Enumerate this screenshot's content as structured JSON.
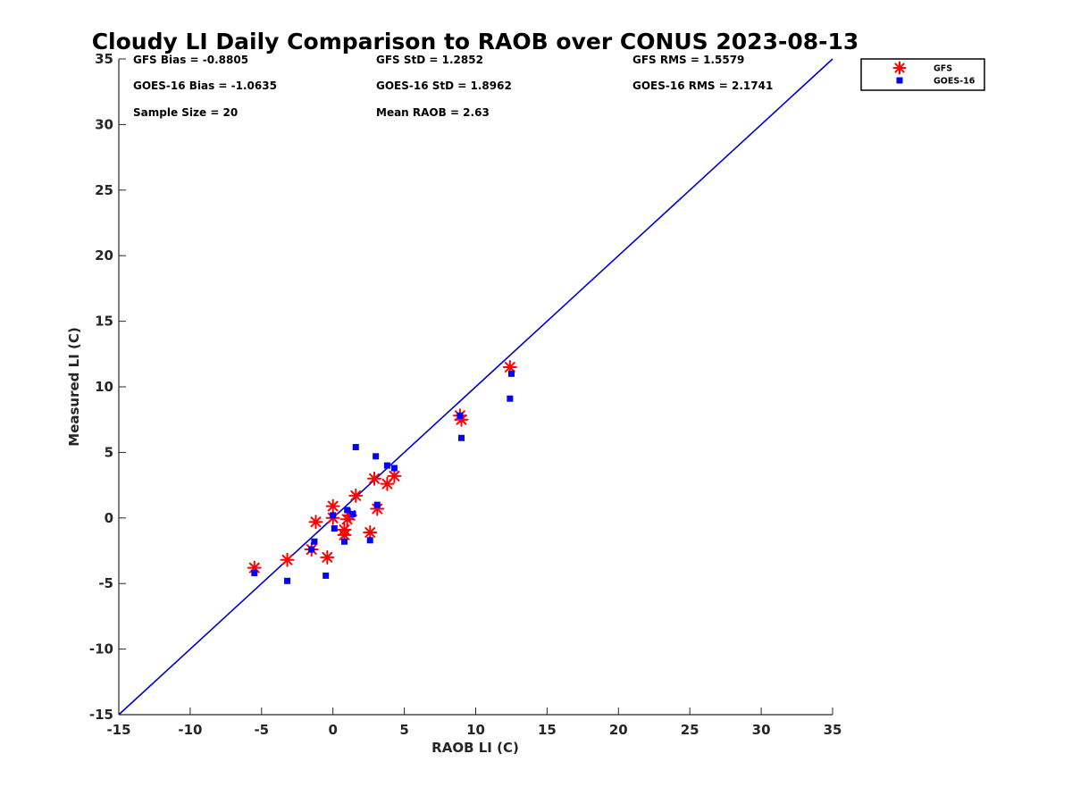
{
  "chart_data": {
    "type": "scatter",
    "title": "Cloudy LI Daily Comparison to RAOB over CONUS 2023-08-13",
    "xlabel": "RAOB LI (C)",
    "ylabel": "Measured LI (C)",
    "xlim": [
      -15,
      35
    ],
    "ylim": [
      -15,
      35
    ],
    "xticks": [
      "-15",
      "-10",
      "-5",
      "0",
      "5",
      "10",
      "15",
      "20",
      "25",
      "30",
      "35"
    ],
    "yticks": [
      "-15",
      "-10",
      "-5",
      "0",
      "5",
      "10",
      "15",
      "20",
      "25",
      "30",
      "35"
    ],
    "grid": false,
    "legend_position": "outside-top-right",
    "reference_line": {
      "x": [
        -15,
        35
      ],
      "y": [
        -15,
        35
      ],
      "color": "#0000cc"
    },
    "stats": [
      [
        "GFS Bias = -0.8805",
        "GFS StD = 1.2852",
        "GFS RMS = 1.5579"
      ],
      [
        "GOES-16 Bias = -1.0635",
        "GOES-16 StD = 1.8962",
        "GOES-16 RMS = 2.1741"
      ],
      [
        "Sample Size = 20",
        "Mean RAOB = 2.63",
        ""
      ]
    ],
    "series": [
      {
        "name": "GFS",
        "marker": "asterisk",
        "color": "#ff0000",
        "x": [
          -5.5,
          -3.2,
          -1.5,
          -1.2,
          -0.4,
          0.0,
          0.0,
          0.8,
          0.8,
          1.0,
          1.2,
          1.6,
          2.6,
          2.9,
          3.1,
          3.8,
          4.3,
          8.9,
          9.0,
          12.4
        ],
        "y": [
          -3.8,
          -3.2,
          -2.4,
          -0.3,
          -3.0,
          0.9,
          0.0,
          -1.3,
          -0.9,
          -0.1,
          0.2,
          1.7,
          -1.1,
          3.0,
          0.7,
          2.6,
          3.2,
          7.8,
          7.5,
          11.5
        ]
      },
      {
        "name": "GOES-16",
        "marker": "square",
        "color": "#0000ff",
        "x": [
          -5.5,
          -3.2,
          -1.5,
          -1.3,
          -0.5,
          0.0,
          0.1,
          0.8,
          1.0,
          1.4,
          1.6,
          2.6,
          3.0,
          3.1,
          3.8,
          4.3,
          8.9,
          9.0,
          12.4,
          12.5
        ],
        "y": [
          -4.2,
          -4.8,
          -2.4,
          -1.8,
          -4.4,
          0.2,
          -0.8,
          -1.8,
          0.6,
          0.3,
          5.4,
          -1.7,
          4.7,
          1.0,
          4.0,
          3.8,
          7.8,
          6.1,
          9.1,
          11.0
        ]
      }
    ]
  }
}
